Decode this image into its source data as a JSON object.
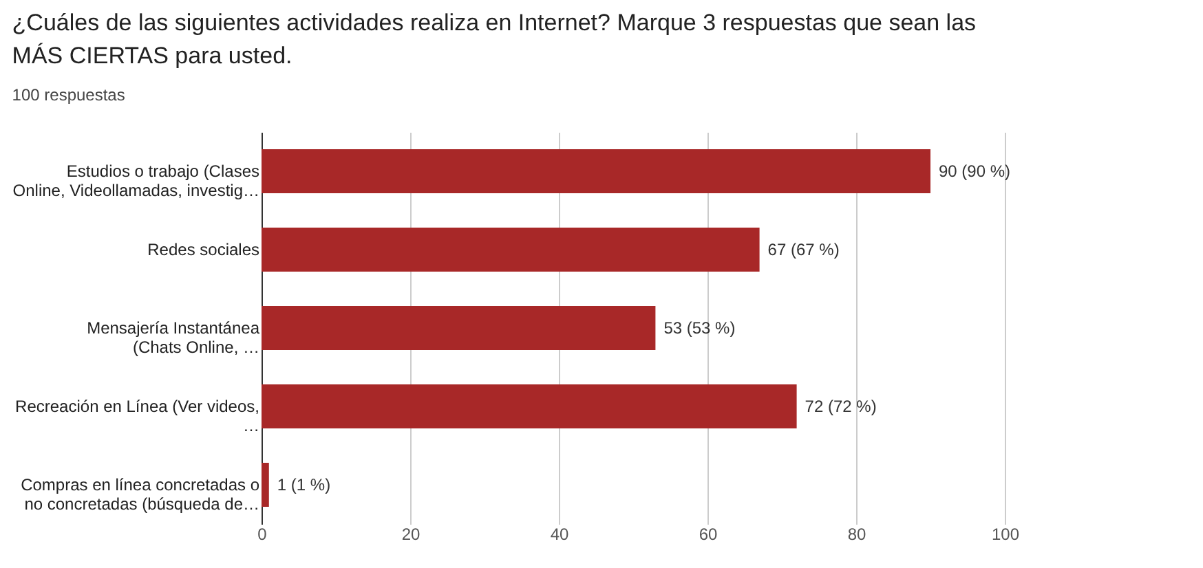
{
  "chart_data": {
    "type": "bar",
    "orientation": "horizontal",
    "title": "¿Cuáles de las siguientes actividades realiza en Internet? Marque 3 respuestas que sean las\nMÁS CIERTAS para usted.",
    "subtitle": "100 respuestas",
    "categories": [
      "Estudios o trabajo (Clases\nOnline, Videollamadas, investig…",
      "Redes sociales",
      "Mensajería Instantánea\n(Chats Online, …",
      "Recreación en Línea (Ver videos,\n…",
      "Compras en línea concretadas o\nno concretadas (búsqueda de…"
    ],
    "values": [
      90,
      67,
      53,
      72,
      1
    ],
    "value_labels": [
      "90 (90 %)",
      "67 (67 %)",
      "53 (53 %)",
      "72 (72 %)",
      "1 (1 %)"
    ],
    "color": "#a82828",
    "xlim": [
      0,
      100
    ],
    "xticks": [
      0,
      20,
      40,
      60,
      80,
      100
    ],
    "grid": "x"
  }
}
